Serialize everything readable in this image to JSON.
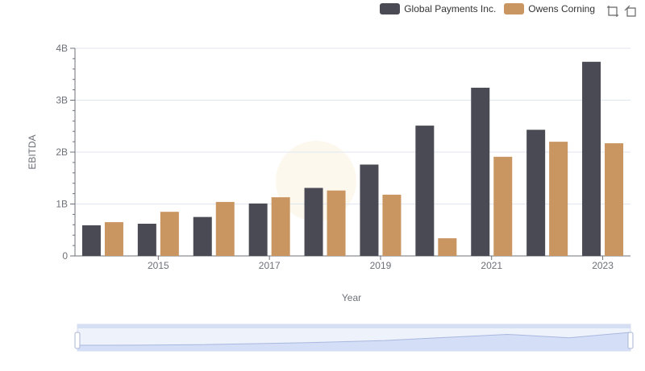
{
  "legend": {
    "items": [
      {
        "name": "Global Payments Inc.",
        "color": "#4a4a55"
      },
      {
        "name": "Owens Corning",
        "color": "#c99561"
      }
    ]
  },
  "toolbox": {
    "icons": [
      "zoom-icon",
      "reset-icon"
    ]
  },
  "chart_data": {
    "type": "bar",
    "categories": [
      "2014",
      "2015",
      "2016",
      "2017",
      "2018",
      "2019",
      "2020",
      "2021",
      "2022",
      "2023"
    ],
    "x_tick_labels": [
      "2015",
      "2017",
      "2019",
      "2021",
      "2023"
    ],
    "series": [
      {
        "name": "Global Payments Inc.",
        "color": "#4a4a55",
        "values": [
          0.59,
          0.62,
          0.75,
          1.01,
          1.31,
          1.76,
          2.51,
          3.24,
          2.43,
          3.74
        ]
      },
      {
        "name": "Owens Corning",
        "color": "#c99561",
        "values": [
          0.65,
          0.85,
          1.04,
          1.13,
          1.26,
          1.18,
          0.34,
          1.91,
          2.2,
          2.17
        ]
      }
    ],
    "value_unit": "B",
    "y_ticks": [
      "0",
      "1B",
      "2B",
      "3B",
      "4B"
    ],
    "ylim": [
      0,
      4
    ],
    "xlabel": "Year",
    "ylabel": "EBITDA",
    "grid": true,
    "legend_position": "top-right"
  }
}
